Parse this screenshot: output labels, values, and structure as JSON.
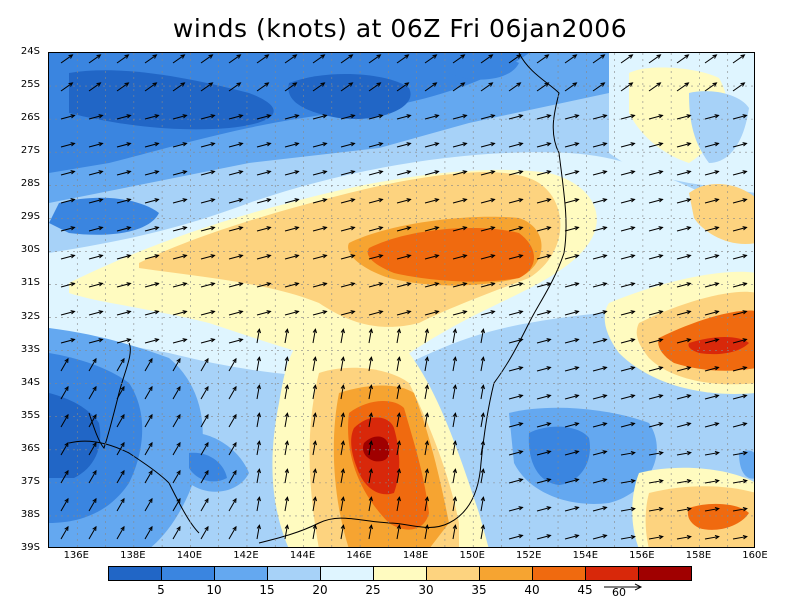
{
  "title": "winds (knots) at 06Z Fri 06jan2006",
  "lat_labels": [
    "24S",
    "25S",
    "26S",
    "27S",
    "28S",
    "29S",
    "30S",
    "31S",
    "32S",
    "33S",
    "34S",
    "35S",
    "36S",
    "37S",
    "38S",
    "39S"
  ],
  "lon_labels": [
    "136E",
    "138E",
    "140E",
    "142E",
    "144E",
    "146E",
    "148E",
    "150E",
    "152E",
    "154E",
    "156E",
    "158E",
    "160E"
  ],
  "colorbar": {
    "colors": [
      "#2166c6",
      "#3a85e0",
      "#64a8f0",
      "#a7d2f8",
      "#dff5ff",
      "#fffbc0",
      "#fdd37f",
      "#f6a431",
      "#f06a0f",
      "#d8280a",
      "#a00000"
    ],
    "labels": [
      "5",
      "10",
      "15",
      "20",
      "25",
      "30",
      "35",
      "40",
      "45"
    ]
  },
  "reference_vector_label": "60",
  "palette": {
    "very_low": "#2166c6",
    "low": "#3a85e0",
    "mid_low": "#64a8f0",
    "light_blue": "#a7d2f8",
    "pale": "#dff5ff",
    "cream": "#fffbc0",
    "light_orange": "#fdd37f",
    "orange": "#f6a431",
    "dark_orange": "#f06a0f",
    "red": "#d8280a",
    "dark_red": "#a00000"
  }
}
